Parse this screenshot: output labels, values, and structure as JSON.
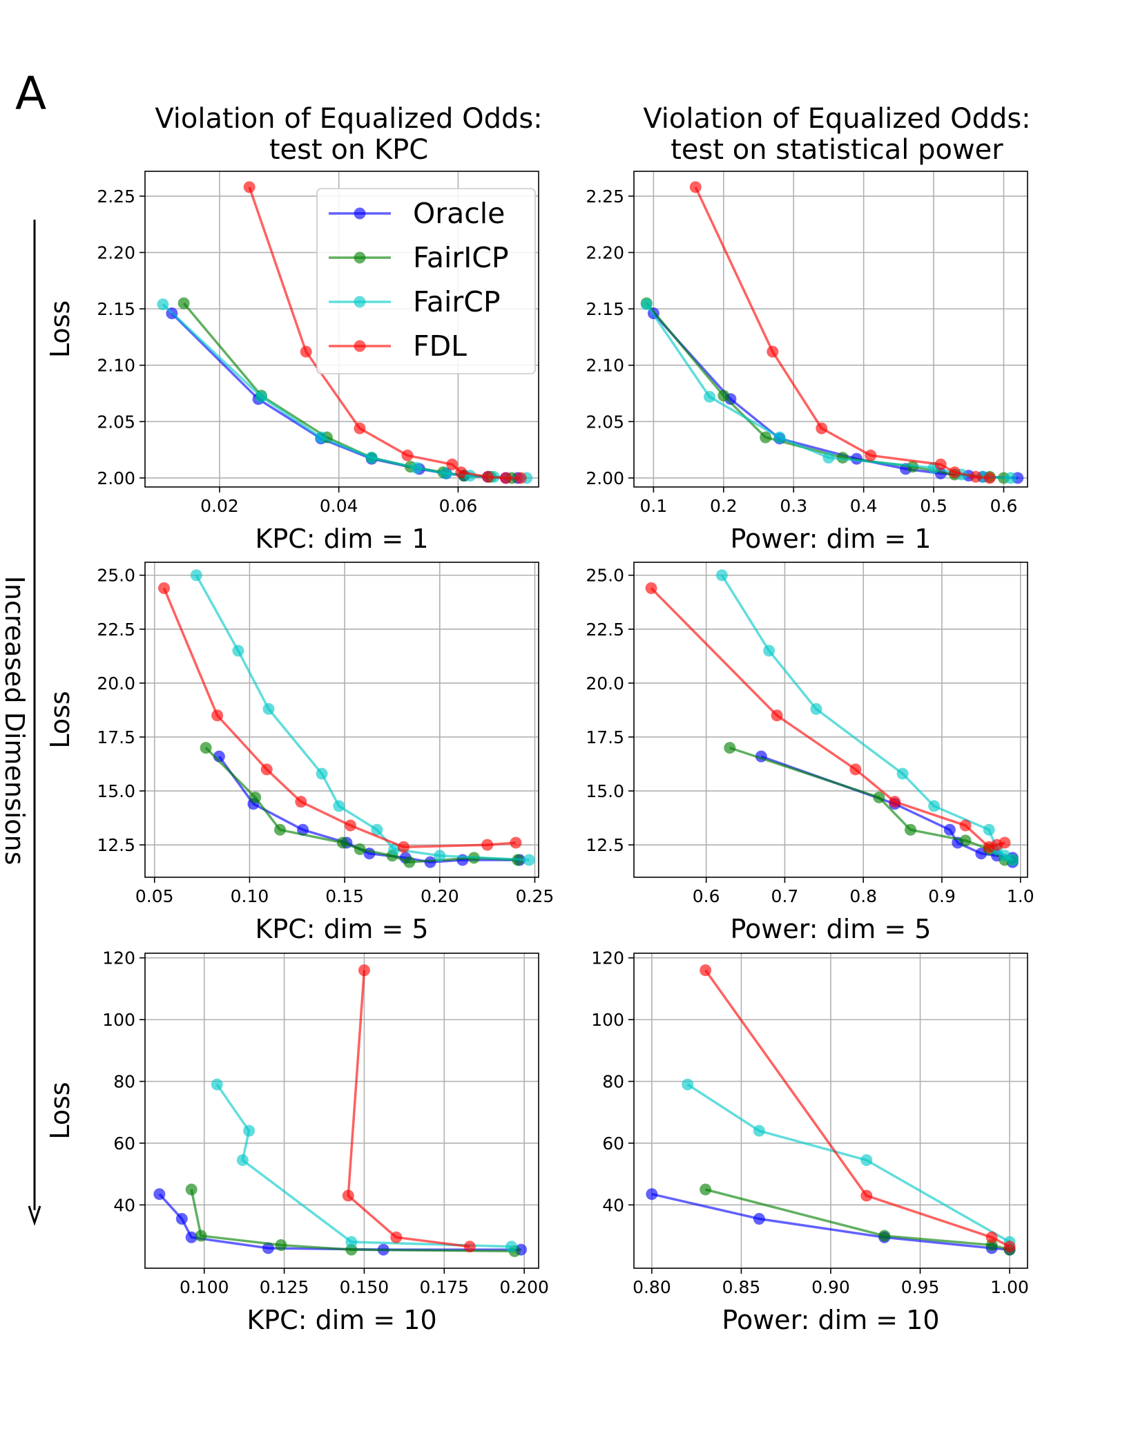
{
  "panel_label": "A",
  "column_titles": [
    [
      "Violation of Equalized Odds:",
      "test on KPC"
    ],
    [
      "Violation of Equalized Odds:",
      "test on statistical power"
    ]
  ],
  "side_label": "Increased Dimensions",
  "row_ylabel": "Loss",
  "legend": [
    {
      "name": "Oracle",
      "color": "#0000ff"
    },
    {
      "name": "FairICP",
      "color": "#008000"
    },
    {
      "name": "FairCP",
      "color": "#00c8c8"
    },
    {
      "name": "FDL",
      "color": "#ff0000"
    }
  ],
  "chart_data": [
    {
      "type": "line",
      "xlabel": "KPC: dim = 1",
      "ylabel": "Loss",
      "xlim": [
        0.0075,
        0.0735
      ],
      "ylim": [
        1.992,
        2.272
      ],
      "xticks": [
        0.02,
        0.04,
        0.06
      ],
      "xtick_labels": [
        "0.02",
        "0.04",
        "0.06"
      ],
      "yticks": [
        2.0,
        2.05,
        2.1,
        2.15,
        2.2,
        2.25
      ],
      "ytick_labels": [
        "2.00",
        "2.05",
        "2.10",
        "2.15",
        "2.20",
        "2.25"
      ],
      "grid": true,
      "legend_position": "upper-right",
      "series": [
        {
          "name": "Oracle",
          "x": [
            0.012,
            0.0265,
            0.037,
            0.0455,
            0.0535,
            0.058,
            0.061,
            0.065,
            0.068,
            0.07
          ],
          "y": [
            2.146,
            2.07,
            2.035,
            2.017,
            2.008,
            2.004,
            2.002,
            2.001,
            2.0,
            2.0
          ]
        },
        {
          "name": "FairICP",
          "x": [
            0.014,
            0.027,
            0.038,
            0.0455,
            0.052,
            0.0575,
            0.061,
            0.0655,
            0.069
          ],
          "y": [
            2.155,
            2.073,
            2.036,
            2.018,
            2.01,
            2.005,
            2.002,
            2.001,
            2.0
          ]
        },
        {
          "name": "FairCP",
          "x": [
            0.0105,
            0.027,
            0.037,
            0.0455,
            0.053,
            0.058,
            0.062,
            0.066,
            0.0715
          ],
          "y": [
            2.154,
            2.072,
            2.036,
            2.018,
            2.009,
            2.004,
            2.002,
            2.001,
            2.0
          ]
        },
        {
          "name": "FDL",
          "x": [
            0.025,
            0.0345,
            0.0435,
            0.0515,
            0.059,
            0.0605,
            0.065,
            0.068,
            0.0705
          ],
          "y": [
            2.258,
            2.112,
            2.044,
            2.02,
            2.012,
            2.005,
            2.001,
            2.0,
            2.0
          ]
        }
      ]
    },
    {
      "type": "line",
      "xlabel": "Power: dim = 1",
      "ylabel": "",
      "xlim": [
        0.072,
        0.634
      ],
      "ylim": [
        1.992,
        2.272
      ],
      "xticks": [
        0.1,
        0.2,
        0.3,
        0.4,
        0.5,
        0.6
      ],
      "xtick_labels": [
        "0.1",
        "0.2",
        "0.3",
        "0.4",
        "0.5",
        "0.6"
      ],
      "yticks": [
        2.0,
        2.05,
        2.1,
        2.15,
        2.2,
        2.25
      ],
      "ytick_labels": [
        "2.00",
        "2.05",
        "2.10",
        "2.15",
        "2.20",
        "2.25"
      ],
      "grid": true,
      "series": [
        {
          "name": "Oracle",
          "x": [
            0.1,
            0.21,
            0.28,
            0.39,
            0.46,
            0.51,
            0.55,
            0.57,
            0.62
          ],
          "y": [
            2.146,
            2.07,
            2.035,
            2.017,
            2.008,
            2.004,
            2.002,
            2.001,
            2.0
          ]
        },
        {
          "name": "FairICP",
          "x": [
            0.09,
            0.2,
            0.26,
            0.37,
            0.47,
            0.53,
            0.58,
            0.6
          ],
          "y": [
            2.155,
            2.073,
            2.036,
            2.018,
            2.01,
            2.003,
            2.001,
            2.0
          ]
        },
        {
          "name": "FairCP",
          "x": [
            0.09,
            0.18,
            0.28,
            0.35,
            0.5,
            0.54,
            0.57,
            0.61
          ],
          "y": [
            2.154,
            2.072,
            2.036,
            2.018,
            2.009,
            2.003,
            2.001,
            2.0
          ]
        },
        {
          "name": "FDL",
          "x": [
            0.16,
            0.27,
            0.34,
            0.41,
            0.51,
            0.53,
            0.56,
            0.58
          ],
          "y": [
            2.258,
            2.112,
            2.044,
            2.02,
            2.012,
            2.005,
            2.001,
            2.0
          ]
        }
      ]
    },
    {
      "type": "line",
      "xlabel": "KPC: dim = 5",
      "ylabel": "Loss",
      "xlim": [
        0.045,
        0.252
      ],
      "ylim": [
        11.0,
        25.6
      ],
      "xticks": [
        0.05,
        0.1,
        0.15,
        0.2,
        0.25
      ],
      "xtick_labels": [
        "0.05",
        "0.10",
        "0.15",
        "0.20",
        "0.25"
      ],
      "yticks": [
        12.5,
        15.0,
        17.5,
        20.0,
        22.5,
        25.0
      ],
      "ytick_labels": [
        "12.5",
        "15.0",
        "17.5",
        "20.0",
        "22.5",
        "25.0"
      ],
      "grid": true,
      "series": [
        {
          "name": "Oracle",
          "x": [
            0.084,
            0.102,
            0.128,
            0.151,
            0.163,
            0.182,
            0.195,
            0.212,
            0.242
          ],
          "y": [
            16.6,
            14.4,
            13.2,
            12.6,
            12.1,
            11.9,
            11.7,
            11.8,
            11.8
          ]
        },
        {
          "name": "FairICP",
          "x": [
            0.077,
            0.103,
            0.116,
            0.149,
            0.158,
            0.175,
            0.184,
            0.218,
            0.241
          ],
          "y": [
            17.0,
            14.7,
            13.2,
            12.6,
            12.3,
            12.0,
            11.7,
            11.9,
            11.8
          ]
        },
        {
          "name": "FairCP",
          "x": [
            0.072,
            0.094,
            0.11,
            0.138,
            0.147,
            0.167,
            0.176,
            0.2,
            0.247
          ],
          "y": [
            25.0,
            21.5,
            18.8,
            15.8,
            14.3,
            13.2,
            12.3,
            12.0,
            11.8
          ]
        },
        {
          "name": "FDL",
          "x": [
            0.055,
            0.083,
            0.109,
            0.127,
            0.153,
            0.181,
            0.225,
            0.24
          ],
          "y": [
            24.4,
            18.5,
            16.0,
            14.5,
            13.4,
            12.4,
            12.5,
            12.6
          ]
        }
      ]
    },
    {
      "type": "line",
      "xlabel": "Power: dim = 5",
      "ylabel": "",
      "xlim": [
        0.508,
        1.009
      ],
      "ylim": [
        11.0,
        25.6
      ],
      "xticks": [
        0.6,
        0.7,
        0.8,
        0.9,
        1.0
      ],
      "xtick_labels": [
        "0.6",
        "0.7",
        "0.8",
        "0.9",
        "1.0"
      ],
      "yticks": [
        12.5,
        15.0,
        17.5,
        20.0,
        22.5,
        25.0
      ],
      "ytick_labels": [
        "12.5",
        "15.0",
        "17.5",
        "20.0",
        "22.5",
        "25.0"
      ],
      "grid": true,
      "series": [
        {
          "name": "Oracle",
          "x": [
            0.67,
            0.84,
            0.91,
            0.92,
            0.95,
            0.97,
            0.99,
            0.99
          ],
          "y": [
            16.6,
            14.4,
            13.2,
            12.6,
            12.1,
            12.0,
            11.9,
            11.7
          ]
        },
        {
          "name": "FairICP",
          "x": [
            0.63,
            0.82,
            0.86,
            0.93,
            0.96,
            0.98,
            0.99
          ],
          "y": [
            17.0,
            14.7,
            13.2,
            12.7,
            12.3,
            11.8,
            11.8
          ]
        },
        {
          "name": "FairCP",
          "x": [
            0.62,
            0.68,
            0.74,
            0.85,
            0.89,
            0.96,
            0.97,
            0.98,
            0.99
          ],
          "y": [
            25.0,
            21.5,
            18.8,
            15.8,
            14.3,
            13.2,
            12.3,
            12.0,
            11.8
          ]
        },
        {
          "name": "FDL",
          "x": [
            0.53,
            0.69,
            0.79,
            0.84,
            0.93,
            0.96,
            0.97,
            0.98
          ],
          "y": [
            24.4,
            18.5,
            16.0,
            14.5,
            13.4,
            12.4,
            12.5,
            12.6
          ]
        }
      ]
    },
    {
      "type": "line",
      "xlabel": "KPC: dim = 10",
      "ylabel": "Loss",
      "xlim": [
        0.0815,
        0.2045
      ],
      "ylim": [
        19.5,
        121.5
      ],
      "xticks": [
        0.1,
        0.125,
        0.15,
        0.175,
        0.2
      ],
      "xtick_labels": [
        "0.100",
        "0.125",
        "0.150",
        "0.175",
        "0.200"
      ],
      "yticks": [
        40,
        60,
        80,
        100,
        120
      ],
      "ytick_labels": [
        "40",
        "60",
        "80",
        "100",
        "120"
      ],
      "grid": true,
      "series": [
        {
          "name": "Oracle",
          "x": [
            0.086,
            0.093,
            0.096,
            0.12,
            0.156,
            0.199
          ],
          "y": [
            43.5,
            35.5,
            29.5,
            26.0,
            25.5,
            25.5
          ]
        },
        {
          "name": "FairICP",
          "x": [
            0.096,
            0.099,
            0.124,
            0.146,
            0.197
          ],
          "y": [
            45.0,
            30.0,
            27.0,
            25.5,
            25.0
          ]
        },
        {
          "name": "FairCP",
          "x": [
            0.104,
            0.114,
            0.112,
            0.146,
            0.196
          ],
          "y": [
            79.0,
            64.0,
            54.5,
            28.0,
            26.5
          ]
        },
        {
          "name": "FDL",
          "x": [
            0.15,
            0.145,
            0.16,
            0.183
          ],
          "y": [
            116.0,
            43.0,
            29.5,
            26.5
          ]
        }
      ]
    },
    {
      "type": "line",
      "xlabel": "Power: dim = 10",
      "ylabel": "",
      "xlim": [
        0.79,
        1.01
      ],
      "ylim": [
        19.5,
        121.5
      ],
      "xticks": [
        0.8,
        0.85,
        0.9,
        0.95,
        1.0
      ],
      "xtick_labels": [
        "0.80",
        "0.85",
        "0.90",
        "0.95",
        "1.00"
      ],
      "yticks": [
        40,
        60,
        80,
        100,
        120
      ],
      "ytick_labels": [
        "40",
        "60",
        "80",
        "100",
        "120"
      ],
      "grid": true,
      "series": [
        {
          "name": "Oracle",
          "x": [
            0.8,
            0.86,
            0.93,
            0.99,
            1.0
          ],
          "y": [
            43.5,
            35.5,
            29.5,
            26.0,
            25.5
          ]
        },
        {
          "name": "FairICP",
          "x": [
            0.83,
            0.93,
            0.99,
            1.0
          ],
          "y": [
            45.0,
            30.0,
            27.0,
            25.5
          ]
        },
        {
          "name": "FairCP",
          "x": [
            0.82,
            0.86,
            0.92,
            1.0
          ],
          "y": [
            79.0,
            64.0,
            54.5,
            28.0
          ]
        },
        {
          "name": "FDL",
          "x": [
            0.83,
            0.92,
            0.99,
            1.0
          ],
          "y": [
            116.0,
            43.0,
            29.5,
            26.5
          ]
        }
      ]
    }
  ]
}
